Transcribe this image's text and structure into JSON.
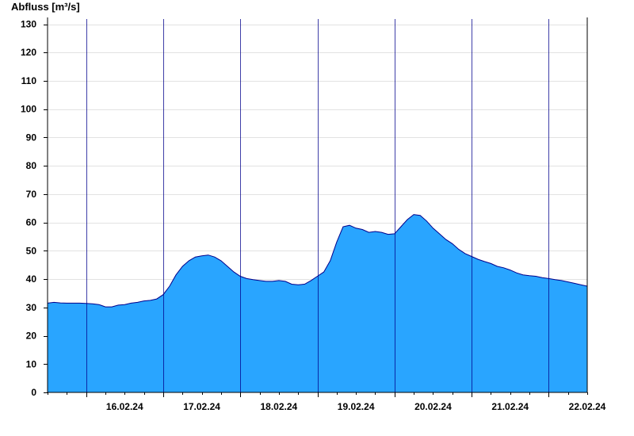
{
  "chart_data": {
    "type": "area",
    "title": "",
    "xlabel": "",
    "ylabel": "Abfluss [m³/s]",
    "ylim": [
      0,
      130
    ],
    "y_ticks": [
      0,
      10,
      20,
      30,
      40,
      50,
      60,
      70,
      80,
      90,
      100,
      110,
      120,
      130
    ],
    "x_range": [
      "15.02.24 12:00",
      "22.02.24 12:00"
    ],
    "x_tick_labels": [
      "16.02.24",
      "17.02.24",
      "18.02.24",
      "19.02.24",
      "20.02.24",
      "21.02.24",
      "22.02.24"
    ],
    "grid": true,
    "legend": "none",
    "fill_color": "#29a5ff",
    "line_color": "#00008b",
    "series": [
      {
        "x": [
          "15.02.24 12:00",
          "15.02.24 14:00",
          "15.02.24 16:00",
          "15.02.24 18:00",
          "15.02.24 20:00",
          "15.02.24 22:00",
          "16.02.24 00:00",
          "16.02.24 02:00",
          "16.02.24 04:00",
          "16.02.24 06:00",
          "16.02.24 08:00",
          "16.02.24 10:00",
          "16.02.24 12:00",
          "16.02.24 14:00",
          "16.02.24 16:00",
          "16.02.24 18:00",
          "16.02.24 20:00",
          "16.02.24 22:00",
          "17.02.24 00:00",
          "17.02.24 02:00",
          "17.02.24 04:00",
          "17.02.24 06:00",
          "17.02.24 08:00",
          "17.02.24 10:00",
          "17.02.24 12:00",
          "17.02.24 14:00",
          "17.02.24 16:00",
          "17.02.24 18:00",
          "17.02.24 20:00",
          "17.02.24 22:00",
          "18.02.24 00:00",
          "18.02.24 02:00",
          "18.02.24 04:00",
          "18.02.24 06:00",
          "18.02.24 08:00",
          "18.02.24 10:00",
          "18.02.24 12:00",
          "18.02.24 14:00",
          "18.02.24 16:00",
          "18.02.24 18:00",
          "18.02.24 20:00",
          "18.02.24 22:00",
          "19.02.24 00:00",
          "19.02.24 02:00",
          "19.02.24 04:00",
          "19.02.24 06:00",
          "19.02.24 08:00",
          "19.02.24 10:00",
          "19.02.24 12:00",
          "19.02.24 14:00",
          "19.02.24 16:00",
          "19.02.24 18:00",
          "19.02.24 20:00",
          "19.02.24 22:00",
          "20.02.24 00:00",
          "20.02.24 02:00",
          "20.02.24 04:00",
          "20.02.24 06:00",
          "20.02.24 08:00",
          "20.02.24 10:00",
          "20.02.24 12:00",
          "20.02.24 14:00",
          "20.02.24 16:00",
          "20.02.24 18:00",
          "20.02.24 20:00",
          "20.02.24 22:00",
          "21.02.24 00:00",
          "21.02.24 02:00",
          "21.02.24 04:00",
          "21.02.24 06:00",
          "21.02.24 08:00",
          "21.02.24 10:00",
          "21.02.24 12:00",
          "21.02.24 14:00",
          "21.02.24 16:00",
          "21.02.24 18:00",
          "21.02.24 20:00",
          "21.02.24 22:00",
          "22.02.24 00:00",
          "22.02.24 02:00",
          "22.02.24 04:00",
          "22.02.24 06:00",
          "22.02.24 08:00",
          "22.02.24 10:00",
          "22.02.24 12:00"
        ],
        "values": [
          31.5,
          31.8,
          31.6,
          31.5,
          31.5,
          31.5,
          31.4,
          31.3,
          31.0,
          30.2,
          30.2,
          30.8,
          31.0,
          31.5,
          31.8,
          32.3,
          32.5,
          33.0,
          34.5,
          37.5,
          41.5,
          44.5,
          46.5,
          47.8,
          48.2,
          48.5,
          47.8,
          46.5,
          44.5,
          42.5,
          41.0,
          40.2,
          39.8,
          39.5,
          39.2,
          39.2,
          39.5,
          39.2,
          38.2,
          38.0,
          38.2,
          39.5,
          41.0,
          42.5,
          46.5,
          53.0,
          58.5,
          59.0,
          58.0,
          57.5,
          56.5,
          56.8,
          56.5,
          55.8,
          56.0,
          58.5,
          61.0,
          62.8,
          62.5,
          60.5,
          58.0,
          56.0,
          54.0,
          52.5,
          50.5,
          49.0,
          48.0,
          47.0,
          46.2,
          45.5,
          44.5,
          44.0,
          43.2,
          42.2,
          41.5,
          41.2,
          41.0,
          40.5,
          40.2,
          39.8,
          39.5,
          39.0,
          38.5,
          38.0,
          37.5
        ]
      }
    ]
  }
}
